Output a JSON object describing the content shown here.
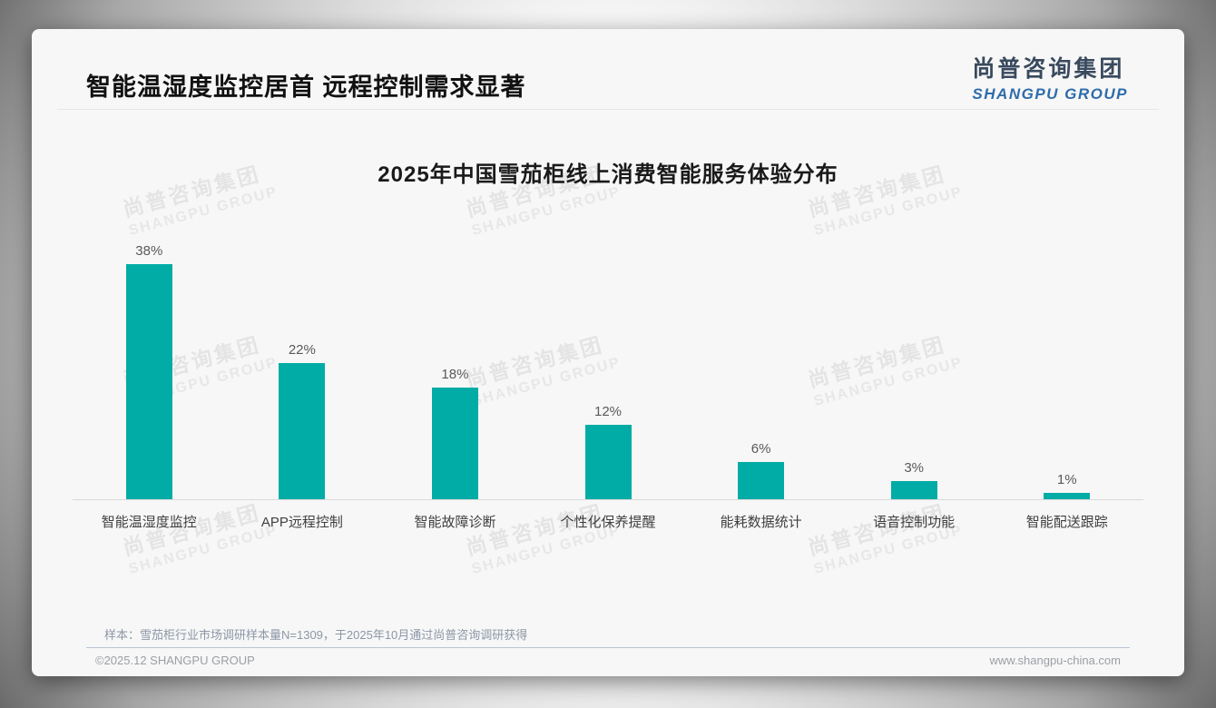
{
  "slide": {
    "headline": "智能温湿度监控居首 远程控制需求显著",
    "logo": {
      "cn": "尚普咨询集团",
      "en": "SHANGPU GROUP"
    },
    "watermark": {
      "line1": "尚普咨询集团",
      "line2": "SHANGPU GROUP"
    },
    "sample_note": "样本：雪茄柜行业市场调研样本量N=1309，于2025年10月通过尚普咨询调研获得",
    "footer": {
      "copyright": "©2025.12 SHANGPU GROUP",
      "website": "www.shangpu-china.com"
    }
  },
  "chart_data": {
    "type": "bar",
    "title": "2025年中国雪茄柜线上消费智能服务体验分布",
    "categories": [
      "智能温湿度监控",
      "APP远程控制",
      "智能故障诊断",
      "个性化保养提醒",
      "能耗数据统计",
      "语音控制功能",
      "智能配送跟踪"
    ],
    "values": [
      38,
      22,
      18,
      12,
      6,
      3,
      1
    ],
    "labels": [
      "38%",
      "22%",
      "18%",
      "12%",
      "6%",
      "3%",
      "1%"
    ],
    "unit": "%",
    "bar_color": "#00ACA5",
    "ylim": [
      0,
      40
    ],
    "grid": false,
    "legend_position": "none",
    "xlabel": "",
    "ylabel": ""
  }
}
